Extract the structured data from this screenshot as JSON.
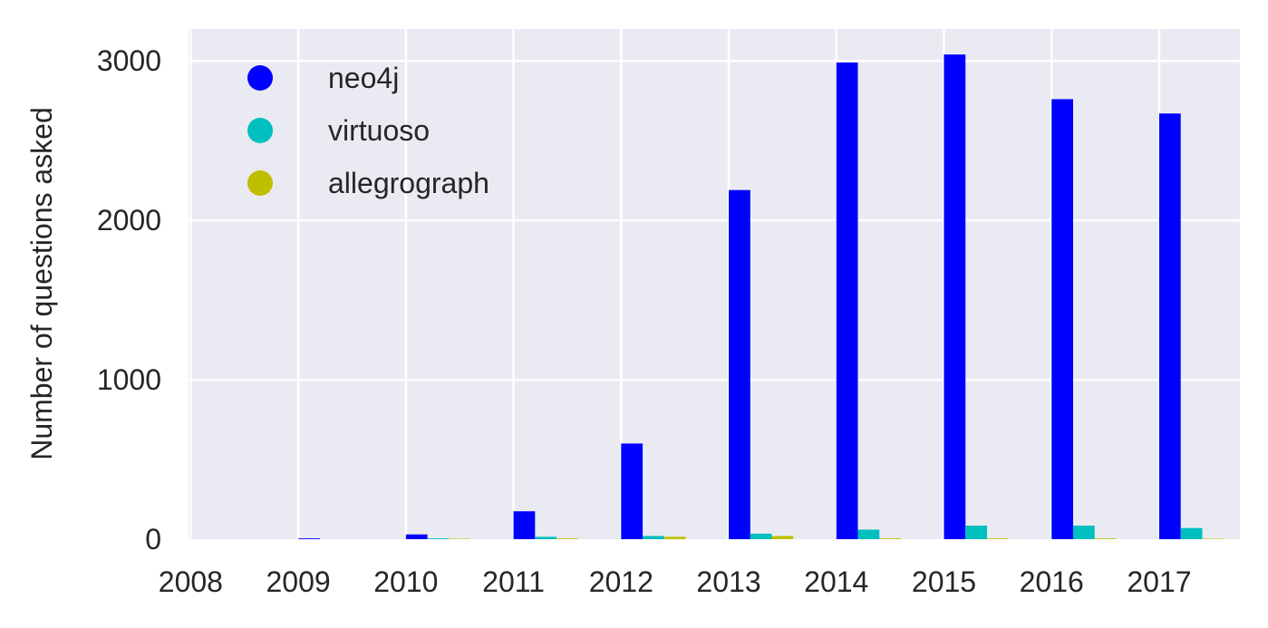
{
  "chart_data": {
    "type": "bar",
    "categories": [
      "2008",
      "2009",
      "2010",
      "2011",
      "2012",
      "2013",
      "2014",
      "2015",
      "2016",
      "2017"
    ],
    "series": [
      {
        "name": "neo4j",
        "color": "#0000ff",
        "values": [
          0,
          5,
          30,
          175,
          600,
          2190,
          2990,
          3040,
          2760,
          2670
        ]
      },
      {
        "name": "virtuoso",
        "color": "#00bfbf",
        "values": [
          0,
          0,
          5,
          15,
          20,
          35,
          60,
          85,
          85,
          70
        ]
      },
      {
        "name": "allegrograph",
        "color": "#bfbf00",
        "values": [
          0,
          0,
          3,
          5,
          15,
          20,
          5,
          5,
          5,
          3
        ]
      }
    ],
    "xticks": [
      "2008",
      "2009",
      "2010",
      "2011",
      "2012",
      "2013",
      "2014",
      "2015",
      "2016",
      "2017"
    ],
    "yticks": [
      "0",
      "1000",
      "2000",
      "3000"
    ],
    "ylabel": "Number of questions asked",
    "xlim": [
      2007.98,
      2017.75
    ],
    "ylim": [
      0,
      3200
    ],
    "grid": true,
    "legend_position": "top-left",
    "background_color": "#eaeaf2"
  }
}
